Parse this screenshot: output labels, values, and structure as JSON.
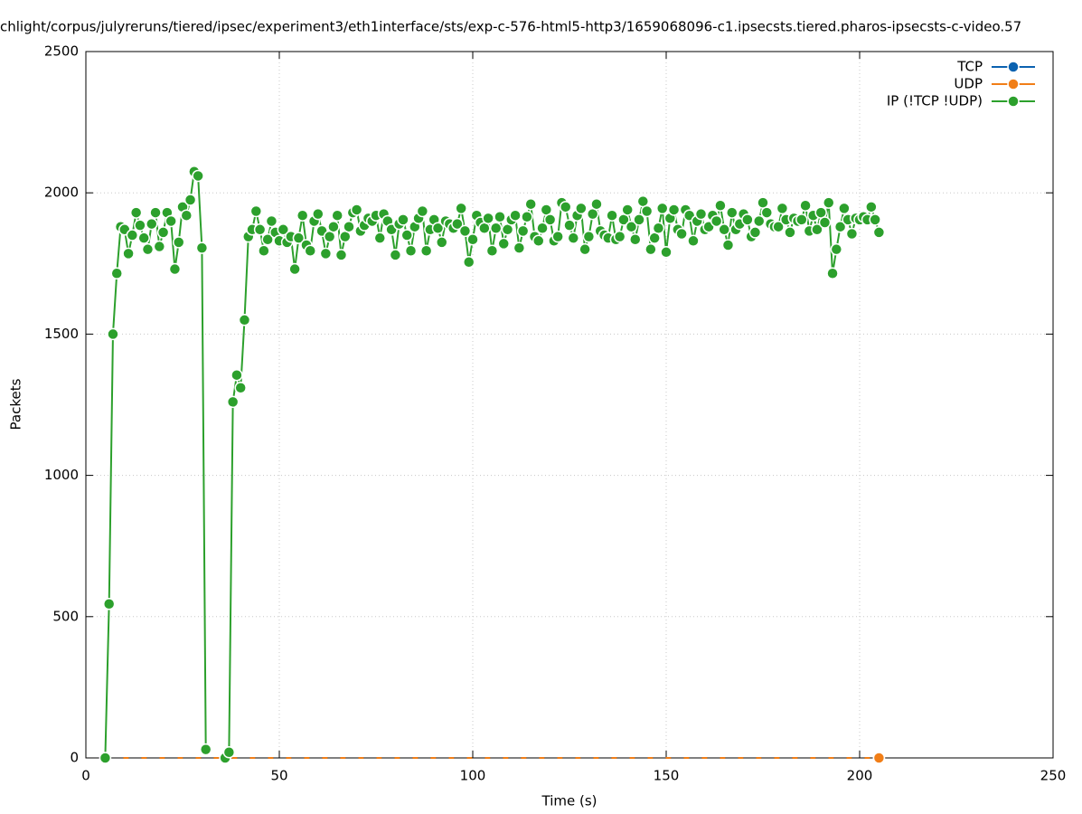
{
  "chart_data": {
    "type": "line",
    "title": "chlight/corpus/julyreruns/tiered/ipsec/experiment3/eth1interface/sts/exp-c-576-html5-http3/1659068096-c1.ipsecsts.tiered.pharos-ipsecsts-c-video.57",
    "x_label": "Time (s)",
    "y_label": "Packets",
    "xlim": [
      0,
      250
    ],
    "xticks": [
      0,
      50,
      100,
      150,
      200,
      250
    ],
    "ylim": [
      0,
      2500
    ],
    "yticks": [
      0,
      500,
      1000,
      1500,
      2000,
      2500
    ],
    "grid": true,
    "legend": "top-right",
    "x": [
      5,
      6,
      7,
      8,
      9,
      10,
      11,
      12,
      13,
      14,
      15,
      16,
      17,
      18,
      19,
      20,
      21,
      22,
      23,
      24,
      25,
      26,
      27,
      28,
      29,
      30,
      31,
      32,
      33,
      34,
      35,
      36,
      37,
      38,
      39,
      40,
      41,
      42,
      43,
      44,
      45,
      46,
      47,
      48,
      49,
      50,
      51,
      52,
      53,
      54,
      55,
      56,
      57,
      58,
      59,
      60,
      61,
      62,
      63,
      64,
      65,
      66,
      67,
      68,
      69,
      70,
      71,
      72,
      73,
      74,
      75,
      76,
      77,
      78,
      79,
      80,
      81,
      82,
      83,
      84,
      85,
      86,
      87,
      88,
      89,
      90,
      91,
      92,
      93,
      94,
      95,
      96,
      97,
      98,
      99,
      100,
      101,
      102,
      103,
      104,
      105,
      106,
      107,
      108,
      109,
      110,
      111,
      112,
      113,
      114,
      115,
      116,
      117,
      118,
      119,
      120,
      121,
      122,
      123,
      124,
      125,
      126,
      127,
      128,
      129,
      130,
      131,
      132,
      133,
      134,
      135,
      136,
      137,
      138,
      139,
      140,
      141,
      142,
      143,
      144,
      145,
      146,
      147,
      148,
      149,
      150,
      151,
      152,
      153,
      154,
      155,
      156,
      157,
      158,
      159,
      160,
      161,
      162,
      163,
      164,
      165,
      166,
      167,
      168,
      169,
      170,
      171,
      172,
      173,
      174,
      175,
      176,
      177,
      178,
      179,
      180,
      181,
      182,
      183,
      184,
      185,
      186,
      187,
      188,
      189,
      190,
      191,
      192,
      193,
      194,
      195,
      196,
      197,
      198,
      199,
      200,
      201,
      202,
      203,
      204,
      205
    ],
    "series": [
      {
        "name": "TCP",
        "color": "#0b62b0",
        "dashed": true,
        "values": [
          0,
          0,
          0,
          0,
          0,
          0,
          0,
          0,
          0,
          0,
          0,
          0,
          0,
          0,
          0,
          0,
          0,
          0,
          0,
          0,
          0,
          0,
          0,
          0,
          0,
          0,
          0,
          0,
          0,
          0,
          0,
          0,
          0,
          0,
          0,
          0,
          0,
          0,
          0,
          0,
          0,
          0,
          0,
          0,
          0,
          0,
          0,
          0,
          0,
          0,
          0,
          0,
          0,
          0,
          0,
          0,
          0,
          0,
          0,
          0,
          0,
          0,
          0,
          0,
          0,
          0,
          0,
          0,
          0,
          0,
          0,
          0,
          0,
          0,
          0,
          0,
          0,
          0,
          0,
          0,
          0,
          0,
          0,
          0,
          0,
          0,
          0,
          0,
          0,
          0,
          0,
          0,
          0,
          0,
          0,
          0,
          0,
          0,
          0,
          0,
          0,
          0,
          0,
          0,
          0,
          0,
          0,
          0,
          0,
          0,
          0,
          0,
          0,
          0,
          0,
          0,
          0,
          0,
          0,
          0,
          0,
          0,
          0,
          0,
          0,
          0,
          0,
          0,
          0,
          0,
          0,
          0,
          0,
          0,
          0,
          0,
          0,
          0,
          0,
          0,
          0,
          0,
          0,
          0,
          0,
          0,
          0,
          0,
          0,
          0,
          0,
          0,
          0,
          0,
          0,
          0,
          0,
          0,
          0,
          0,
          0,
          0,
          0,
          0,
          0,
          0,
          0,
          0,
          0,
          0,
          0,
          0,
          0,
          0,
          0,
          0,
          0,
          0,
          0,
          0,
          0,
          0,
          0,
          0,
          0,
          0,
          0,
          0,
          0,
          0,
          0,
          0,
          0,
          0,
          0,
          0,
          0,
          0,
          0,
          0,
          0
        ]
      },
      {
        "name": "UDP",
        "color": "#f17e17",
        "dashed": true,
        "values": [
          0,
          0,
          0,
          0,
          0,
          0,
          0,
          0,
          0,
          0,
          0,
          0,
          0,
          0,
          0,
          0,
          0,
          0,
          0,
          0,
          0,
          0,
          0,
          0,
          0,
          0,
          0,
          0,
          0,
          0,
          0,
          0,
          0,
          0,
          0,
          0,
          0,
          0,
          0,
          0,
          0,
          0,
          0,
          0,
          0,
          0,
          0,
          0,
          0,
          0,
          0,
          0,
          0,
          0,
          0,
          0,
          0,
          0,
          0,
          0,
          0,
          0,
          0,
          0,
          0,
          0,
          0,
          0,
          0,
          0,
          0,
          0,
          0,
          0,
          0,
          0,
          0,
          0,
          0,
          0,
          0,
          0,
          0,
          0,
          0,
          0,
          0,
          0,
          0,
          0,
          0,
          0,
          0,
          0,
          0,
          0,
          0,
          0,
          0,
          0,
          0,
          0,
          0,
          0,
          0,
          0,
          0,
          0,
          0,
          0,
          0,
          0,
          0,
          0,
          0,
          0,
          0,
          0,
          0,
          0,
          0,
          0,
          0,
          0,
          0,
          0,
          0,
          0,
          0,
          0,
          0,
          0,
          0,
          0,
          0,
          0,
          0,
          0,
          0,
          0,
          0,
          0,
          0,
          0,
          0,
          0,
          0,
          0,
          0,
          0,
          0,
          0,
          0,
          0,
          0,
          0,
          0,
          0,
          0,
          0,
          0,
          0,
          0,
          0,
          0,
          0,
          0,
          0,
          0,
          0,
          0,
          0,
          0,
          0,
          0,
          0,
          0,
          0,
          0,
          0,
          0,
          0,
          0,
          0,
          0,
          0,
          0,
          0,
          0,
          0,
          0,
          0,
          0,
          0,
          0,
          0,
          0,
          0,
          0,
          0,
          0
        ]
      },
      {
        "name": "IP (!TCP  !UDP)",
        "color": "#2ca02c",
        "dashed": false,
        "values": [
          0,
          545,
          1500,
          1715,
          1880,
          1870,
          1785,
          1850,
          1930,
          1885,
          1840,
          1800,
          1890,
          1930,
          1810,
          1860,
          1930,
          1900,
          1730,
          1825,
          1950,
          1920,
          1975,
          2075,
          2060,
          1805,
          30,
          null,
          null,
          null,
          null,
          0,
          20,
          1260,
          1355,
          1310,
          1550,
          1845,
          1870,
          1935,
          1870,
          1795,
          1835,
          1900,
          1860,
          1830,
          1870,
          1825,
          1845,
          1730,
          1840,
          1920,
          1815,
          1795,
          1900,
          1925,
          1865,
          1785,
          1845,
          1880,
          1920,
          1780,
          1845,
          1880,
          1930,
          1940,
          1865,
          1885,
          1910,
          1900,
          1920,
          1840,
          1925,
          1900,
          1870,
          1780,
          1890,
          1905,
          1850,
          1795,
          1880,
          1910,
          1935,
          1795,
          1870,
          1905,
          1875,
          1825,
          1900,
          1890,
          1875,
          1890,
          1945,
          1865,
          1755,
          1835,
          1920,
          1895,
          1875,
          1910,
          1795,
          1875,
          1915,
          1820,
          1870,
          1905,
          1920,
          1805,
          1865,
          1915,
          1960,
          1845,
          1830,
          1875,
          1940,
          1905,
          1830,
          1845,
          1965,
          1950,
          1885,
          1840,
          1920,
          1945,
          1800,
          1845,
          1925,
          1960,
          1865,
          1850,
          1840,
          1920,
          1835,
          1845,
          1905,
          1940,
          1880,
          1835,
          1905,
          1970,
          1935,
          1800,
          1840,
          1875,
          1945,
          1790,
          1910,
          1940,
          1870,
          1855,
          1940,
          1920,
          1830,
          1900,
          1925,
          1870,
          1880,
          1920,
          1900,
          1955,
          1870,
          1815,
          1930,
          1870,
          1890,
          1925,
          1905,
          1845,
          1860,
          1900,
          1965,
          1930,
          1890,
          1880,
          1880,
          1945,
          1905,
          1860,
          1910,
          1900,
          1905,
          1955,
          1865,
          1920,
          1870,
          1930,
          1895,
          1965,
          1715,
          1800,
          1880,
          1945,
          1905,
          1855,
          1910,
          1905,
          1915,
          1905,
          1950,
          1905,
          1860
        ]
      }
    ]
  }
}
